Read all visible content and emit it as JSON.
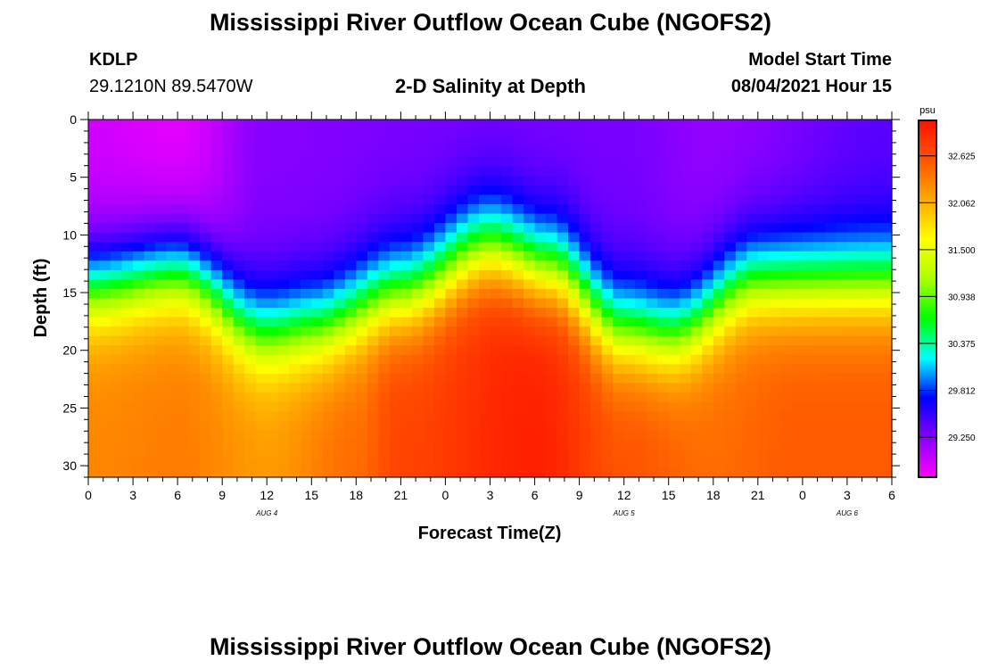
{
  "header": {
    "title": "Mississippi River Outflow Ocean Cube (NGOFS2)",
    "station_id": "KDLP",
    "station_coords": "29.1210N  89.5470W",
    "subtitle": "2-D Salinity at Depth",
    "model_start_label": "Model Start Time",
    "model_start_value": "08/04/2021 Hour 15"
  },
  "footer": {
    "title": "Mississippi River Outflow Ocean Cube (NGOFS2)"
  },
  "chart_data": {
    "type": "heatmap",
    "title": "2-D Salinity at Depth",
    "xlabel": "Forecast Time(Z)",
    "ylabel": "Depth (ft)",
    "x_tick_labels": [
      "0",
      "3",
      "6",
      "9",
      "12",
      "15",
      "18",
      "21",
      "0",
      "3",
      "6",
      "9",
      "12",
      "15",
      "18",
      "21",
      "0",
      "3",
      "6"
    ],
    "x_hours": [
      0,
      3,
      6,
      9,
      12,
      15,
      18,
      21,
      24,
      27,
      30,
      33,
      36,
      39,
      42,
      45,
      48,
      51,
      54
    ],
    "x_range_hours": [
      0,
      54
    ],
    "date_labels": [
      {
        "label": "AUG 4",
        "hour": 12
      },
      {
        "label": "AUG 5",
        "hour": 36
      },
      {
        "label": "AUG 6",
        "hour": 51
      }
    ],
    "y_ticks": [
      0,
      5,
      10,
      15,
      20,
      25,
      30
    ],
    "y_range_ft": [
      0,
      31
    ],
    "y_inverted": true,
    "colorbar": {
      "unit": "psu",
      "range": [
        28.77,
        33.05
      ],
      "tick_labels": [
        "32.625",
        "32.062",
        "31.500",
        "30.938",
        "30.375",
        "29.812",
        "29.250"
      ],
      "colors": [
        "#ff00ff",
        "#8800ff",
        "#0000ff",
        "#00ffff",
        "#00ff00",
        "#aaff00",
        "#ffff00",
        "#ffaa00",
        "#ff5500",
        "#ff1100"
      ]
    },
    "halocline_depth_ft": [
      {
        "hour": 0,
        "depth": 14.5
      },
      {
        "hour": 6,
        "depth": 13.3
      },
      {
        "hour": 12,
        "depth": 18.5
      },
      {
        "hour": 15,
        "depth": 18.0
      },
      {
        "hour": 21,
        "depth": 15.0
      },
      {
        "hour": 27,
        "depth": 11.0
      },
      {
        "hour": 31,
        "depth": 12.8
      },
      {
        "hour": 36,
        "depth": 18.2
      },
      {
        "hour": 39,
        "depth": 18.7
      },
      {
        "hour": 45,
        "depth": 14.0
      },
      {
        "hour": 54,
        "depth": 14.0
      }
    ],
    "surface_salinity_psu": [
      {
        "hour": 0,
        "value": 28.95
      },
      {
        "hour": 6,
        "value": 28.87
      },
      {
        "hour": 12,
        "value": 29.25
      },
      {
        "hour": 24,
        "value": 29.3
      },
      {
        "hour": 36,
        "value": 29.3
      },
      {
        "hour": 42,
        "value": 29.2
      },
      {
        "hour": 54,
        "value": 29.4
      }
    ],
    "bottom_salinity_psu": [
      {
        "hour": 0,
        "value": 32.3
      },
      {
        "hour": 6,
        "value": 32.35
      },
      {
        "hour": 12,
        "value": 32.2
      },
      {
        "hour": 18,
        "value": 32.45
      },
      {
        "hour": 21,
        "value": 32.7
      },
      {
        "hour": 30,
        "value": 32.95
      },
      {
        "hour": 36,
        "value": 32.6
      },
      {
        "hour": 42,
        "value": 32.45
      },
      {
        "hour": 48,
        "value": 32.55
      },
      {
        "hour": 54,
        "value": 32.55
      }
    ]
  }
}
